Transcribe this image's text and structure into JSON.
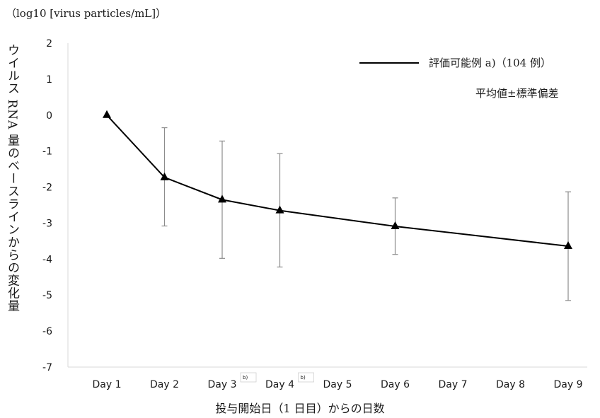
{
  "chart_data": {
    "type": "line",
    "unit_label": "（log10 [virus particles/mL]）",
    "ylabel": "ウイルス RNA 量のベースラインからの変化量",
    "xlabel": "投与開始日（1 日目）からの日数",
    "ylim": [
      -7,
      2
    ],
    "yticks": [
      "2",
      "1",
      "0",
      "-1",
      "-2",
      "-3",
      "-4",
      "-5",
      "-6",
      "-7"
    ],
    "categories": [
      "Day 1",
      "Day 2",
      "Day 3",
      "Day 4",
      "Day 5",
      "Day 6",
      "Day 7",
      "Day 8",
      "Day 9"
    ],
    "category_notes": {
      "Day 3": "b)",
      "Day 4": "b)"
    },
    "series": [
      {
        "name": "評価可能例 a)（104 例）",
        "points": [
          {
            "x": "Day 1",
            "y": 0
          },
          {
            "x": "Day 2",
            "y": -1.73,
            "err_low": -3.08,
            "err_high": -0.35
          },
          {
            "x": "Day 3",
            "y": -2.35,
            "err_low": -3.98,
            "err_high": -0.72
          },
          {
            "x": "Day 4",
            "y": -2.65,
            "err_low": -4.22,
            "err_high": -1.07
          },
          {
            "x": "Day 6",
            "y": -3.09,
            "err_low": -3.87,
            "err_high": -2.3
          },
          {
            "x": "Day 9",
            "y": -3.64,
            "err_low": -5.15,
            "err_high": -2.13
          }
        ]
      }
    ],
    "stat_label": "平均値±標準偏差",
    "grid": false,
    "legend_position": "top-right",
    "colors": {
      "line": "#000000",
      "axis": "#d9d9d9",
      "errorbar": "#8c8c8c"
    }
  }
}
